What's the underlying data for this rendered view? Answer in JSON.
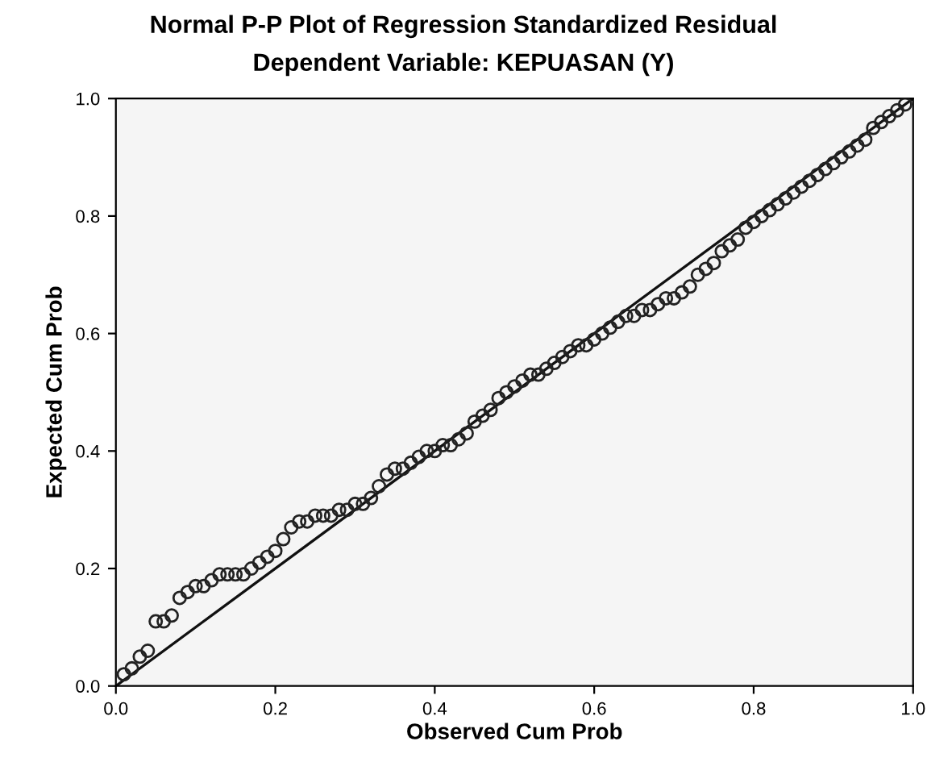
{
  "chart_data": {
    "type": "scatter",
    "title": "Normal P-P Plot of Regression Standardized Residual",
    "subtitle": "Dependent Variable: KEPUASAN (Y)",
    "xlabel": "Observed Cum Prob",
    "ylabel": "Expected Cum Prob",
    "xlim": [
      0,
      1
    ],
    "ylim": [
      0,
      1
    ],
    "xticks": [
      {
        "value": 0,
        "label": "0.0"
      },
      {
        "value": 0.2,
        "label": "0.2"
      },
      {
        "value": 0.4,
        "label": "0.4"
      },
      {
        "value": 0.6,
        "label": "0.6"
      },
      {
        "value": 0.8,
        "label": "0.8"
      },
      {
        "value": 1,
        "label": "1.0"
      }
    ],
    "yticks": [
      {
        "value": 0,
        "label": "0.0"
      },
      {
        "value": 0.2,
        "label": "0.2"
      },
      {
        "value": 0.4,
        "label": "0.4"
      },
      {
        "value": 0.6,
        "label": "0.6"
      },
      {
        "value": 0.8,
        "label": "0.8"
      },
      {
        "value": 1,
        "label": "1.0"
      }
    ],
    "grid": false,
    "legend": false,
    "marker": "circle",
    "series": [
      {
        "color": "#222222",
        "x": [
          0.01,
          0.02,
          0.03,
          0.04,
          0.05,
          0.06,
          0.07,
          0.08,
          0.09,
          0.1,
          0.11,
          0.12,
          0.13,
          0.14,
          0.15,
          0.16,
          0.17,
          0.18,
          0.19,
          0.2,
          0.21,
          0.22,
          0.23,
          0.24,
          0.25,
          0.26,
          0.27,
          0.28,
          0.29,
          0.3,
          0.31,
          0.32,
          0.33,
          0.34,
          0.35,
          0.36,
          0.37,
          0.38,
          0.39,
          0.4,
          0.41,
          0.42,
          0.43,
          0.44,
          0.45,
          0.46,
          0.47,
          0.48,
          0.49,
          0.5,
          0.51,
          0.52,
          0.53,
          0.54,
          0.55,
          0.56,
          0.57,
          0.58,
          0.59,
          0.6,
          0.61,
          0.62,
          0.63,
          0.64,
          0.65,
          0.66,
          0.67,
          0.68,
          0.69,
          0.7,
          0.71,
          0.72,
          0.73,
          0.74,
          0.75,
          0.76,
          0.77,
          0.78,
          0.79,
          0.8,
          0.81,
          0.82,
          0.83,
          0.84,
          0.85,
          0.86,
          0.87,
          0.88,
          0.89,
          0.9,
          0.91,
          0.92,
          0.93,
          0.94,
          0.95,
          0.96,
          0.97,
          0.98,
          0.99
        ],
        "values": [
          0.02,
          0.03,
          0.05,
          0.06,
          0.11,
          0.11,
          0.12,
          0.15,
          0.16,
          0.17,
          0.17,
          0.18,
          0.19,
          0.19,
          0.19,
          0.19,
          0.2,
          0.21,
          0.22,
          0.23,
          0.25,
          0.27,
          0.28,
          0.28,
          0.29,
          0.29,
          0.29,
          0.3,
          0.3,
          0.31,
          0.31,
          0.32,
          0.34,
          0.36,
          0.37,
          0.37,
          0.38,
          0.39,
          0.4,
          0.4,
          0.41,
          0.41,
          0.42,
          0.43,
          0.45,
          0.46,
          0.47,
          0.49,
          0.5,
          0.51,
          0.52,
          0.53,
          0.53,
          0.54,
          0.55,
          0.56,
          0.57,
          0.58,
          0.58,
          0.59,
          0.6,
          0.61,
          0.62,
          0.63,
          0.63,
          0.64,
          0.64,
          0.65,
          0.66,
          0.66,
          0.67,
          0.68,
          0.7,
          0.71,
          0.72,
          0.74,
          0.75,
          0.76,
          0.78,
          0.79,
          0.8,
          0.81,
          0.82,
          0.83,
          0.84,
          0.85,
          0.86,
          0.87,
          0.88,
          0.89,
          0.9,
          0.91,
          0.92,
          0.93,
          0.95,
          0.96,
          0.97,
          0.98,
          0.99
        ]
      },
      {
        "type": "line",
        "color": "#111111",
        "x": [
          0,
          1
        ],
        "values": [
          0,
          1
        ],
        "line_style": "solid",
        "marker": "none"
      }
    ]
  }
}
